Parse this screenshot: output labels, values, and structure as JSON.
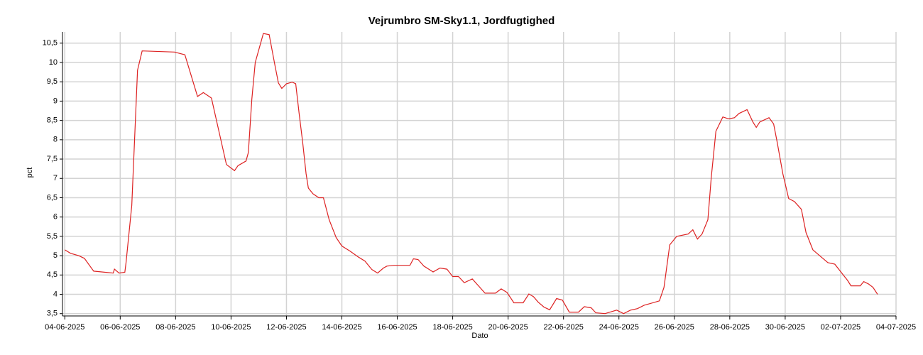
{
  "chart_data": {
    "type": "line",
    "title": "Vejrumbro SM-Sky1.1, Jordfugtighed",
    "xlabel": "Dato",
    "ylabel": "pct",
    "color": "#dd2222",
    "grid": true,
    "xlim": [
      "2025-06-03T22:00",
      "2025-07-04T00:00"
    ],
    "xticks": [
      {
        "value": "2025-06-04T00:00",
        "label": "04-06-2025"
      },
      {
        "value": "2025-06-06T00:00",
        "label": "06-06-2025"
      },
      {
        "value": "2025-06-08T00:00",
        "label": "08-06-2025"
      },
      {
        "value": "2025-06-10T00:00",
        "label": "10-06-2025"
      },
      {
        "value": "2025-06-12T00:00",
        "label": "12-06-2025"
      },
      {
        "value": "2025-06-14T00:00",
        "label": "14-06-2025"
      },
      {
        "value": "2025-06-16T00:00",
        "label": "16-06-2025"
      },
      {
        "value": "2025-06-18T00:00",
        "label": "18-06-2025"
      },
      {
        "value": "2025-06-20T00:00",
        "label": "20-06-2025"
      },
      {
        "value": "2025-06-22T00:00",
        "label": "22-06-2025"
      },
      {
        "value": "2025-06-24T00:00",
        "label": "24-06-2025"
      },
      {
        "value": "2025-06-26T00:00",
        "label": "26-06-2025"
      },
      {
        "value": "2025-06-28T00:00",
        "label": "28-06-2025"
      },
      {
        "value": "2025-06-30T00:00",
        "label": "30-06-2025"
      },
      {
        "value": "2025-07-02T00:00",
        "label": "02-07-2025"
      },
      {
        "value": "2025-07-04T00:00",
        "label": "04-07-2025"
      }
    ],
    "ylim": [
      3.44,
      10.79
    ],
    "yticks": [
      {
        "value": 3.5,
        "label": "3,5"
      },
      4,
      {
        "value": 4.5,
        "label": "4,5"
      },
      5,
      {
        "value": 5.5,
        "label": "5,5"
      },
      6,
      {
        "value": 6.5,
        "label": "6,5"
      },
      7,
      {
        "value": 7.5,
        "label": "7,5"
      },
      8,
      {
        "value": 8.5,
        "label": "8,5"
      },
      9,
      {
        "value": 9.5,
        "label": "9,5"
      },
      10,
      {
        "value": 10.5,
        "label": "10,5"
      }
    ],
    "x": [
      "2025-06-04T00:00",
      "2025-06-04T05:00",
      "2025-06-04T12:00",
      "2025-06-04T17:00",
      "2025-06-05T01:00",
      "2025-06-05T18:00",
      "2025-06-05T19:00",
      "2025-06-05T23:00",
      "2025-06-06T04:00",
      "2025-06-06T05:00",
      "2025-06-06T10:00",
      "2025-06-06T15:00",
      "2025-06-06T19:00",
      "2025-06-07T23:00",
      "2025-06-08T08:00",
      "2025-06-08T19:00",
      "2025-06-09T00:00",
      "2025-06-09T07:00",
      "2025-06-09T20:00",
      "2025-06-10T03:00",
      "2025-06-10T06:00",
      "2025-06-10T13:00",
      "2025-06-10T15:00",
      "2025-06-10T18:00",
      "2025-06-10T21:00",
      "2025-06-11T04:00",
      "2025-06-11T09:00",
      "2025-06-11T14:00",
      "2025-06-11T17:00",
      "2025-06-11T20:00",
      "2025-06-12T00:00",
      "2025-06-12T05:00",
      "2025-06-12T08:00",
      "2025-06-12T11:00",
      "2025-06-12T14:00",
      "2025-06-12T17:00",
      "2025-06-12T19:00",
      "2025-06-12T23:00",
      "2025-06-13T04:00",
      "2025-06-13T08:00",
      "2025-06-13T13:00",
      "2025-06-13T19:00",
      "2025-06-14T00:00",
      "2025-06-14T07:00",
      "2025-06-14T14:00",
      "2025-06-14T20:00",
      "2025-06-15T02:00",
      "2025-06-15T07:00",
      "2025-06-15T12:00",
      "2025-06-15T15:00",
      "2025-06-15T21:00",
      "2025-06-16T11:00",
      "2025-06-16T14:00",
      "2025-06-16T18:00",
      "2025-06-16T23:00",
      "2025-06-17T07:00",
      "2025-06-17T13:00",
      "2025-06-17T19:00",
      "2025-06-18T00:00",
      "2025-06-18T05:00",
      "2025-06-18T10:00",
      "2025-06-18T17:00",
      "2025-06-18T22:00",
      "2025-06-19T04:00",
      "2025-06-19T13:00",
      "2025-06-19T18:00",
      "2025-06-19T23:00",
      "2025-06-20T05:00",
      "2025-06-20T13:00",
      "2025-06-20T18:00",
      "2025-06-20T22:00",
      "2025-06-21T02:00",
      "2025-06-21T07:00",
      "2025-06-21T12:00",
      "2025-06-21T18:00",
      "2025-06-21T23:00",
      "2025-06-22T05:00",
      "2025-06-22T13:00",
      "2025-06-22T18:00",
      "2025-06-23T00:00",
      "2025-06-23T04:00",
      "2025-06-23T12:00",
      "2025-06-23T22:00",
      "2025-06-24T04:00",
      "2025-06-24T10:00",
      "2025-06-24T16:00",
      "2025-06-24T22:00",
      "2025-06-25T03:00",
      "2025-06-25T11:00",
      "2025-06-25T15:00",
      "2025-06-25T20:00",
      "2025-06-26T02:00",
      "2025-06-26T12:00",
      "2025-06-26T16:00",
      "2025-06-26T20:00",
      "2025-06-27T00:00",
      "2025-06-27T05:00",
      "2025-06-27T08:00",
      "2025-06-27T12:00",
      "2025-06-27T18:00",
      "2025-06-27T23:00",
      "2025-06-28T04:00",
      "2025-06-28T08:00",
      "2025-06-28T15:00",
      "2025-06-28T20:00",
      "2025-06-28T23:00",
      "2025-06-29T02:00",
      "2025-06-29T10:00",
      "2025-06-29T14:00",
      "2025-06-29T17:00",
      "2025-06-29T22:00",
      "2025-06-30T03:00",
      "2025-06-30T08:00",
      "2025-06-30T14:00",
      "2025-06-30T18:00",
      "2025-07-01T00:00",
      "2025-07-01T07:00",
      "2025-07-01T13:00",
      "2025-07-01T19:00",
      "2025-07-02T01:00",
      "2025-07-02T06:00",
      "2025-07-02T09:00",
      "2025-07-02T17:00",
      "2025-07-02T20:00",
      "2025-07-03T00:00",
      "2025-07-03T04:00",
      "2025-07-03T08:00"
    ],
    "values": [
      5.15,
      5.06,
      5.0,
      4.93,
      4.6,
      4.55,
      4.65,
      4.55,
      4.57,
      4.8,
      6.3,
      9.8,
      10.3,
      10.27,
      10.2,
      9.12,
      9.22,
      9.08,
      7.36,
      7.2,
      7.33,
      7.45,
      7.67,
      9.05,
      10.0,
      10.75,
      10.72,
      9.93,
      9.47,
      9.33,
      9.45,
      9.49,
      9.45,
      8.68,
      7.95,
      7.12,
      6.75,
      6.6,
      6.5,
      6.5,
      5.93,
      5.47,
      5.25,
      5.12,
      4.97,
      4.86,
      4.64,
      4.55,
      4.68,
      4.73,
      4.75,
      4.75,
      4.92,
      4.9,
      4.73,
      4.58,
      4.68,
      4.65,
      4.46,
      4.46,
      4.3,
      4.4,
      4.23,
      4.03,
      4.03,
      4.14,
      4.05,
      3.78,
      3.78,
      4.01,
      3.94,
      3.8,
      3.67,
      3.6,
      3.89,
      3.85,
      3.54,
      3.54,
      3.68,
      3.65,
      3.52,
      3.5,
      3.59,
      3.5,
      3.59,
      3.63,
      3.72,
      3.76,
      3.83,
      4.18,
      5.28,
      5.5,
      5.56,
      5.67,
      5.43,
      5.56,
      5.93,
      7.03,
      8.22,
      8.59,
      8.54,
      8.57,
      8.68,
      8.78,
      8.46,
      8.32,
      8.46,
      8.57,
      8.41,
      7.95,
      7.12,
      6.48,
      6.4,
      6.2,
      5.6,
      5.15,
      4.97,
      4.82,
      4.78,
      4.55,
      4.36,
      4.22,
      4.22,
      4.33,
      4.27,
      4.18,
      4.0
    ]
  }
}
